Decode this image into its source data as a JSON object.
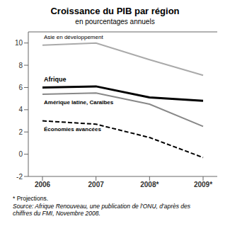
{
  "chart_data": {
    "type": "line",
    "title": "Croissance du PIB par région",
    "subtitle": "en pourcentages annuels",
    "annotations": [
      "* Projections.",
      "Source: Afrique Renouveau, une publication de l'ONU, d'après des\nchiffres du FMI, Novembre 2008."
    ],
    "categories": [
      "2006",
      "2007",
      "2008*",
      "2009*"
    ],
    "series": [
      {
        "name": "Asie en développement",
        "color": "#aaaaaa",
        "line_style": "solid",
        "values": [
          9.8,
          10.0,
          8.5,
          7.1
        ]
      },
      {
        "name": "Afrique",
        "color": "#000000",
        "line_style": "solid",
        "values": [
          6.0,
          6.1,
          5.1,
          4.8
        ]
      },
      {
        "name": "Amérique latine, Caraïbes",
        "color": "#888888",
        "line_style": "solid",
        "values": [
          5.4,
          5.5,
          4.5,
          2.5
        ]
      },
      {
        "name": "Économies avancées",
        "color": "#000000",
        "line_style": "dashed",
        "values": [
          3.0,
          2.7,
          1.5,
          -0.3
        ]
      }
    ],
    "ylim": [
      -2,
      11
    ],
    "yticks": [
      -2,
      0,
      2,
      4,
      6,
      8,
      10
    ],
    "grid": false
  }
}
